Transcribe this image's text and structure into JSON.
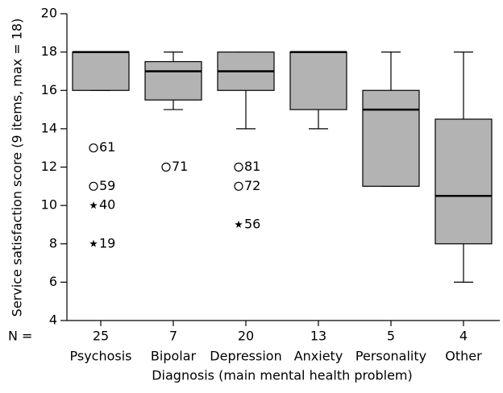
{
  "chart_data": {
    "type": "box",
    "y_label": "Service satisfaction score (9 items, max = 18)",
    "x_label": "Diagnosis (main mental health problem)",
    "n_label": "N =",
    "categories": [
      "Psychosis",
      "Bipolar",
      "Depression",
      "Anxiety",
      "Personality",
      "Other"
    ],
    "n": [
      25,
      7,
      20,
      13,
      5,
      4
    ],
    "boxes": [
      {
        "min": 16,
        "q1": 16,
        "median": 18,
        "q3": 18,
        "max": 18,
        "outliers": [
          {
            "value": 13,
            "id": 61,
            "marker": "circle"
          },
          {
            "value": 11,
            "id": 59,
            "marker": "circle"
          },
          {
            "value": 10,
            "id": 40,
            "marker": "star"
          },
          {
            "value": 8,
            "id": 19,
            "marker": "star"
          }
        ]
      },
      {
        "min": 15,
        "q1": 15.5,
        "median": 17,
        "q3": 17.5,
        "max": 18,
        "outliers": [
          {
            "value": 12,
            "id": 71,
            "marker": "circle"
          }
        ]
      },
      {
        "min": 14,
        "q1": 16,
        "median": 17,
        "q3": 18,
        "max": 18,
        "outliers": [
          {
            "value": 12,
            "id": 81,
            "marker": "circle"
          },
          {
            "value": 11,
            "id": 72,
            "marker": "circle"
          },
          {
            "value": 9,
            "id": 56,
            "marker": "star"
          }
        ]
      },
      {
        "min": 14,
        "q1": 15,
        "median": 18,
        "q3": 18,
        "max": 18,
        "outliers": []
      },
      {
        "min": 11,
        "q1": 11,
        "median": 15,
        "q3": 16,
        "max": 18,
        "outliers": []
      },
      {
        "min": 6,
        "q1": 8,
        "median": 10.5,
        "q3": 14.5,
        "max": 18,
        "outliers": []
      }
    ],
    "color": "#b3b3b3",
    "ylim": [
      4,
      20
    ],
    "yticks": [
      4,
      6,
      8,
      10,
      12,
      14,
      16,
      18,
      20
    ],
    "grid": false
  }
}
